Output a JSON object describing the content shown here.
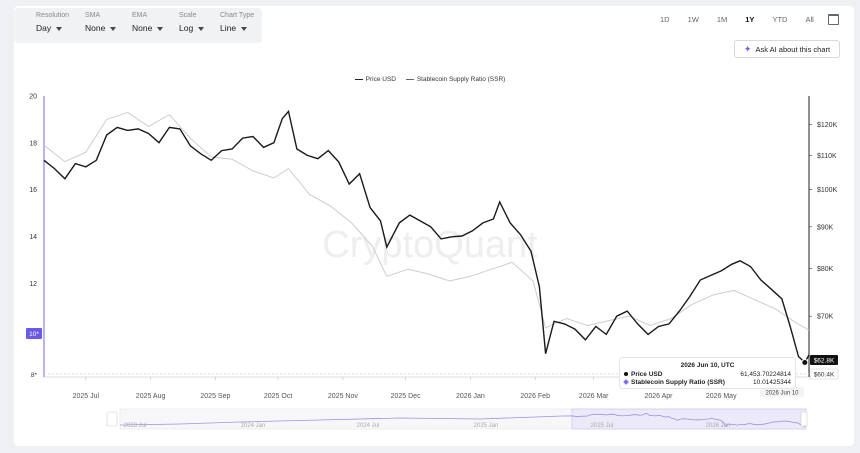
{
  "controls": {
    "resolution": {
      "label": "Resolution",
      "value": "Day"
    },
    "sma": {
      "label": "SMA",
      "value": "None"
    },
    "ema": {
      "label": "EMA",
      "value": "None"
    },
    "scale": {
      "label": "Scale",
      "value": "Log"
    },
    "chart_type": {
      "label": "Chart Type",
      "value": "Line"
    }
  },
  "ranges": [
    "1D",
    "1W",
    "1M",
    "1Y",
    "YTD",
    "All"
  ],
  "active_range": "1Y",
  "ask_ai_label": "Ask AI about this chart",
  "watermark": "CryptoQuant",
  "tooltip": {
    "date": "2026 Jun 10, UTC",
    "price_label": "Price USD",
    "price_value": "61,453.70224814",
    "ssr_label": "Stablecoin Supply Ratio (SSR)",
    "ssr_value": "10.01425344"
  },
  "chart_data": {
    "type": "line",
    "legend": [
      "Price USD",
      "Stablecoin Supply Ratio (SSR)"
    ],
    "legend_position": "top-center",
    "x_range": [
      "2025-06-11",
      "2026-06-12"
    ],
    "x_ticks": [
      "2025 Jul",
      "2025 Aug",
      "2025 Sep",
      "2025 Oct",
      "2025 Nov",
      "2025 Dec",
      "2026 Jan",
      "2026 Feb",
      "2026 Mar",
      "2026 Apr",
      "2026 May"
    ],
    "y_left": {
      "ticks": [
        20,
        18,
        16,
        14,
        12
      ],
      "range": [
        8,
        20
      ],
      "current_label": "10*",
      "min_label": "8*"
    },
    "y_right": {
      "scale": "log",
      "ticks": [
        "$120K",
        "$110K",
        "$100K",
        "$90K",
        "$80K",
        "$70K"
      ],
      "tick_values": [
        120000,
        110000,
        100000,
        90000,
        80000,
        70000
      ],
      "range": [
        59000,
        130000
      ],
      "current_label": "$62.8K",
      "min_label": "$60.4K"
    },
    "x_cursor_label": "2026 Jun 10",
    "navigator_ticks": [
      "2023 Jul",
      "2024 Jan",
      "2024 Jul",
      "2025 Jan",
      "2025 Jul",
      "2026 Jan"
    ],
    "series": [
      {
        "name": "Price USD",
        "axis": "right",
        "color": "#1a1a1a",
        "points": [
          [
            "2025-06-11",
            108500
          ],
          [
            "2025-06-16",
            106000
          ],
          [
            "2025-06-21",
            103000
          ],
          [
            "2025-06-26",
            107500
          ],
          [
            "2025-07-01",
            106500
          ],
          [
            "2025-07-06",
            108500
          ],
          [
            "2025-07-11",
            116500
          ],
          [
            "2025-07-16",
            119000
          ],
          [
            "2025-07-21",
            118000
          ],
          [
            "2025-07-26",
            118500
          ],
          [
            "2025-07-31",
            117000
          ],
          [
            "2025-08-05",
            114000
          ],
          [
            "2025-08-10",
            119000
          ],
          [
            "2025-08-15",
            118500
          ],
          [
            "2025-08-20",
            113000
          ],
          [
            "2025-08-25",
            110500
          ],
          [
            "2025-08-30",
            108500
          ],
          [
            "2025-09-04",
            111500
          ],
          [
            "2025-09-09",
            112000
          ],
          [
            "2025-09-14",
            115500
          ],
          [
            "2025-09-19",
            116000
          ],
          [
            "2025-09-24",
            112500
          ],
          [
            "2025-09-29",
            114000
          ],
          [
            "2025-10-03",
            122000
          ],
          [
            "2025-10-06",
            124500
          ],
          [
            "2025-10-10",
            112000
          ],
          [
            "2025-10-15",
            110000
          ],
          [
            "2025-10-20",
            109000
          ],
          [
            "2025-10-25",
            111500
          ],
          [
            "2025-10-30",
            108000
          ],
          [
            "2025-11-04",
            101500
          ],
          [
            "2025-11-09",
            104500
          ],
          [
            "2025-11-14",
            95000
          ],
          [
            "2025-11-19",
            91500
          ],
          [
            "2025-11-22",
            85000
          ],
          [
            "2025-11-28",
            91000
          ],
          [
            "2025-12-03",
            93000
          ],
          [
            "2025-12-08",
            91500
          ],
          [
            "2025-12-13",
            90000
          ],
          [
            "2025-12-18",
            87000
          ],
          [
            "2025-12-23",
            87500
          ],
          [
            "2025-12-28",
            87700
          ],
          [
            "2026-01-02",
            89000
          ],
          [
            "2026-01-07",
            91000
          ],
          [
            "2026-01-12",
            92000
          ],
          [
            "2026-01-15",
            96500
          ],
          [
            "2026-01-20",
            91000
          ],
          [
            "2026-01-25",
            88000
          ],
          [
            "2026-01-30",
            84000
          ],
          [
            "2026-02-03",
            76000
          ],
          [
            "2026-02-06",
            63000
          ],
          [
            "2026-02-10",
            69000
          ],
          [
            "2026-02-15",
            68500
          ],
          [
            "2026-02-20",
            67500
          ],
          [
            "2026-02-25",
            65500
          ],
          [
            "2026-03-02",
            68000
          ],
          [
            "2026-03-07",
            66500
          ],
          [
            "2026-03-12",
            70000
          ],
          [
            "2026-03-17",
            71000
          ],
          [
            "2026-03-22",
            68500
          ],
          [
            "2026-03-27",
            66500
          ],
          [
            "2026-04-01",
            68000
          ],
          [
            "2026-04-06",
            68500
          ],
          [
            "2026-04-11",
            71000
          ],
          [
            "2026-04-16",
            74000
          ],
          [
            "2026-04-21",
            77500
          ],
          [
            "2026-04-26",
            78500
          ],
          [
            "2026-05-01",
            79500
          ],
          [
            "2026-05-06",
            81000
          ],
          [
            "2026-05-10",
            81800
          ],
          [
            "2026-05-15",
            80500
          ],
          [
            "2026-05-20",
            77500
          ],
          [
            "2026-05-25",
            75500
          ],
          [
            "2026-05-30",
            73500
          ],
          [
            "2026-06-03",
            68000
          ],
          [
            "2026-06-07",
            62500
          ],
          [
            "2026-06-10",
            61450
          ],
          [
            "2026-06-12",
            62800
          ]
        ]
      },
      {
        "name": "Stablecoin Supply Ratio (SSR)",
        "axis": "left",
        "color": "#c8c8c8",
        "points": [
          [
            "2025-06-11",
            17.9
          ],
          [
            "2025-06-21",
            17.2
          ],
          [
            "2025-07-01",
            17.6
          ],
          [
            "2025-07-11",
            19.0
          ],
          [
            "2025-07-21",
            19.3
          ],
          [
            "2025-07-31",
            18.7
          ],
          [
            "2025-08-10",
            19.2
          ],
          [
            "2025-08-20",
            18.2
          ],
          [
            "2025-08-30",
            17.4
          ],
          [
            "2025-09-09",
            17.3
          ],
          [
            "2025-09-19",
            16.8
          ],
          [
            "2025-09-29",
            16.5
          ],
          [
            "2025-10-06",
            16.9
          ],
          [
            "2025-10-16",
            15.8
          ],
          [
            "2025-10-26",
            15.3
          ],
          [
            "2025-11-05",
            14.6
          ],
          [
            "2025-11-15",
            13.6
          ],
          [
            "2025-11-22",
            12.3
          ],
          [
            "2025-12-02",
            12.6
          ],
          [
            "2025-12-12",
            12.4
          ],
          [
            "2025-12-22",
            12.1
          ],
          [
            "2026-01-01",
            12.3
          ],
          [
            "2026-01-11",
            12.6
          ],
          [
            "2026-01-21",
            12.9
          ],
          [
            "2026-01-31",
            12.1
          ],
          [
            "2026-02-06",
            10.1
          ],
          [
            "2026-02-16",
            10.5
          ],
          [
            "2026-02-26",
            10.2
          ],
          [
            "2026-03-08",
            10.4
          ],
          [
            "2026-03-18",
            10.6
          ],
          [
            "2026-03-28",
            10.2
          ],
          [
            "2026-04-07",
            10.5
          ],
          [
            "2026-04-17",
            11.1
          ],
          [
            "2026-04-27",
            11.5
          ],
          [
            "2026-05-07",
            11.7
          ],
          [
            "2026-05-17",
            11.3
          ],
          [
            "2026-05-27",
            10.9
          ],
          [
            "2026-06-06",
            10.3
          ],
          [
            "2026-06-12",
            10.0
          ]
        ]
      }
    ]
  }
}
